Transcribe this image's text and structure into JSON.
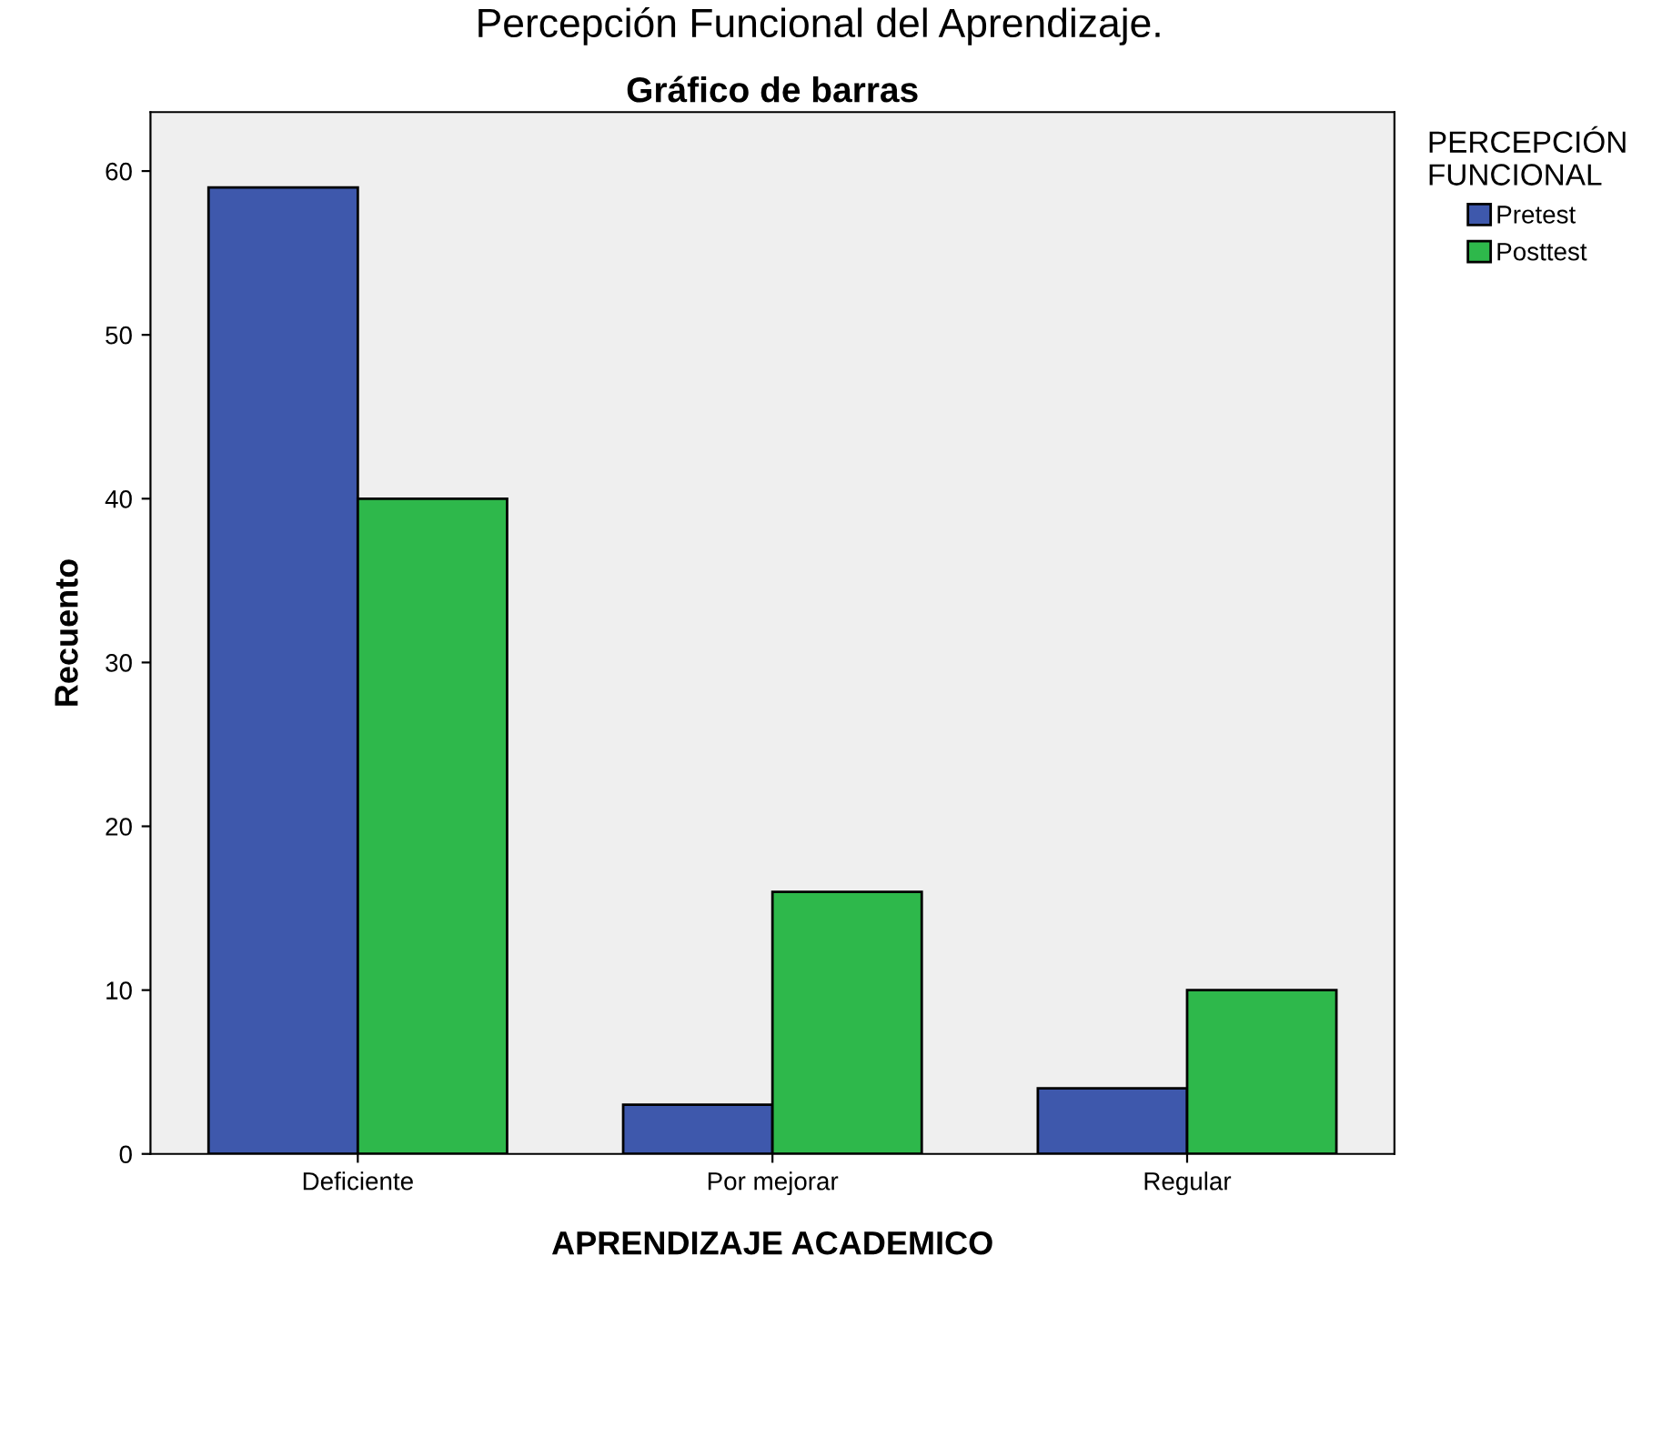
{
  "chart_data": {
    "type": "bar",
    "title": "Percepción Funcional del Aprendizaje.",
    "subtitle": "Gráfico de barras",
    "xlabel": "APRENDIZAJE ACADEMICO",
    "ylabel": "Recuento",
    "legend_title": "PERCEPCIÓN\nFUNCIONAL",
    "categories": [
      "Deficiente",
      "Por mejorar",
      "Regular"
    ],
    "series": [
      {
        "name": "Pretest",
        "color": "#3e58ac",
        "values": [
          59,
          3,
          4
        ]
      },
      {
        "name": "Posttest",
        "color": "#2eb84b",
        "values": [
          40,
          16,
          10
        ]
      }
    ],
    "ylim": [
      0,
      63.6
    ],
    "yticks": [
      0,
      10,
      20,
      30,
      40,
      50,
      60
    ],
    "grid": false,
    "legend": "right"
  }
}
